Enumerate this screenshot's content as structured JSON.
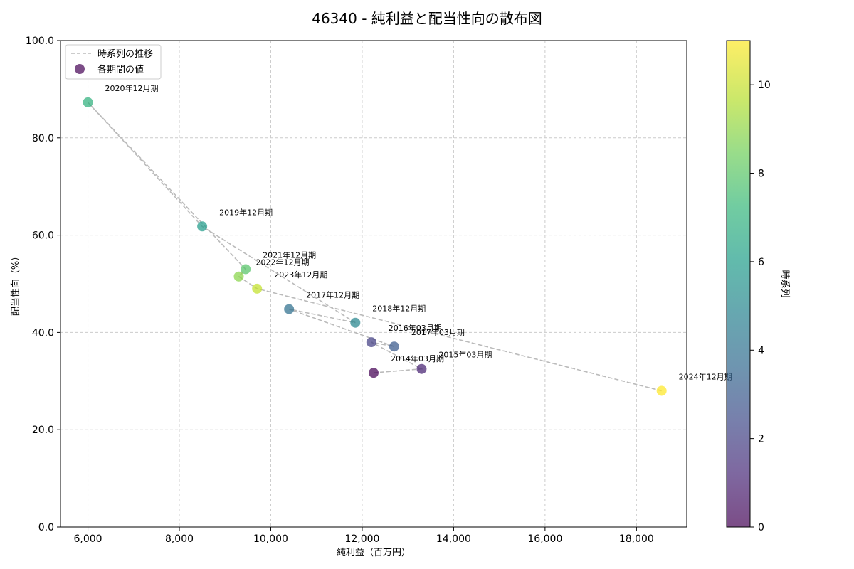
{
  "chart_data": {
    "type": "scatter",
    "title": "46340 - 純利益と配当性向の散布図",
    "xlabel": "純利益（百万円）",
    "ylabel": "配当性向（%）",
    "xlim": [
      5400,
      19100
    ],
    "ylim": [
      0,
      100
    ],
    "xticks": [
      6000,
      8000,
      10000,
      12000,
      14000,
      16000,
      18000
    ],
    "xtick_labels": [
      "6,000",
      "8,000",
      "10,000",
      "12,000",
      "14,000",
      "16,000",
      "18,000"
    ],
    "yticks": [
      0,
      20,
      40,
      60,
      80,
      100
    ],
    "ytick_labels": [
      "0.0",
      "20.0",
      "40.0",
      "60.0",
      "80.0",
      "100.0"
    ],
    "grid": true,
    "legend": {
      "position": "top-left",
      "entries": [
        "時系列の推移",
        "各期間の値"
      ]
    },
    "colorbar": {
      "label": "時系列",
      "range": [
        0,
        11
      ],
      "ticks": [
        0,
        2,
        4,
        6,
        8,
        10
      ],
      "tick_labels": [
        "0",
        "2",
        "4",
        "6",
        "8",
        "10"
      ]
    },
    "points": [
      {
        "label": "2014年03月期",
        "x": 12250,
        "y": 31.7,
        "t": 0
      },
      {
        "label": "2015年03月期",
        "x": 13300,
        "y": 32.5,
        "t": 1
      },
      {
        "label": "2016年03月期",
        "x": 12200,
        "y": 38.0,
        "t": 2
      },
      {
        "label": "2017年03月期",
        "x": 12700,
        "y": 37.1,
        "t": 3
      },
      {
        "label": "2017年12月期",
        "x": 10400,
        "y": 44.8,
        "t": 4
      },
      {
        "label": "2018年12月期",
        "x": 11850,
        "y": 42.0,
        "t": 5
      },
      {
        "label": "2019年12月期",
        "x": 8500,
        "y": 61.8,
        "t": 6
      },
      {
        "label": "2020年12月期",
        "x": 6000,
        "y": 87.3,
        "t": 7
      },
      {
        "label": "2021年12月期",
        "x": 9450,
        "y": 53.0,
        "t": 8
      },
      {
        "label": "2022年12月期",
        "x": 9300,
        "y": 51.5,
        "t": 9
      },
      {
        "label": "2023年12月期",
        "x": 9700,
        "y": 49.0,
        "t": 10
      },
      {
        "label": "2024年12月期",
        "x": 18550,
        "y": 28.0,
        "t": 11
      }
    ],
    "colors": {
      "line": "#bbbbbb",
      "grid": "#cccccc",
      "viridis": [
        "#440154",
        "#482878",
        "#3e4a89",
        "#31688e",
        "#26828e",
        "#1f9e89",
        "#35b779",
        "#6ece58",
        "#b5de2b",
        "#fde725"
      ]
    }
  }
}
